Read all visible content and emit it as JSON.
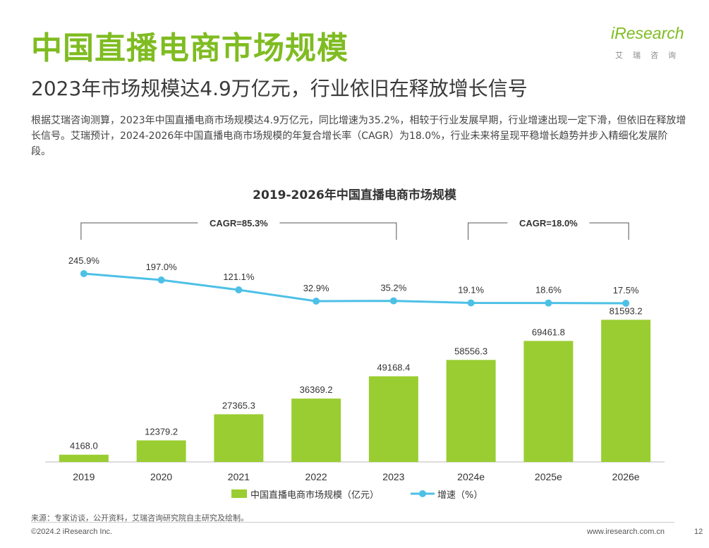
{
  "header": {
    "title": "中国直播电商市场规模",
    "subtitle": "2023年市场规模达4.9万亿元，行业依旧在释放增长信号",
    "body": "根据艾瑞咨询测算，2023年中国直播电商市场规模达4.9万亿元，同比增速为35.2%，相较于行业发展早期，行业增速出现一定下滑，但依旧在释放增长信号。艾瑞预计，2024-2026年中国直播电商市场规模的年复合增长率（CAGR）为18.0%，行业未来将呈现平稳增长趋势并步入精细化发展阶段。"
  },
  "logo": {
    "word": "iResearch",
    "sub": "艾瑞咨询"
  },
  "footer": {
    "source": "来源：专家访谈，公开资料，艾瑞咨询研究院自主研究及绘制。",
    "copyright": "©2024.2 iResearch Inc.",
    "url": "www.iresearch.com.cn",
    "page": "12"
  },
  "colors": {
    "accent": "#7fbc21",
    "bar": "#9acd32",
    "line": "#4dc0e6"
  },
  "chart_data": {
    "type": "bar",
    "title": "2019-2026年中国直播电商市场规模",
    "categories": [
      "2019",
      "2020",
      "2021",
      "2022",
      "2023",
      "2024e",
      "2025e",
      "2026e"
    ],
    "series": [
      {
        "name": "中国直播电商市场规模（亿元）",
        "type": "bar",
        "values": [
          4168.0,
          12379.2,
          27365.3,
          36369.2,
          49168.4,
          58556.3,
          69461.8,
          81593.2
        ],
        "labels": [
          "4168.0",
          "12379.2",
          "27365.3",
          "36369.2",
          "49168.4",
          "58556.3",
          "69461.8",
          "81593.2"
        ]
      },
      {
        "name": "增速（%）",
        "type": "line",
        "values": [
          245.9,
          197.0,
          121.1,
          32.9,
          35.2,
          19.1,
          18.6,
          17.5
        ],
        "labels": [
          "245.9%",
          "197.0%",
          "121.1%",
          "32.9%",
          "35.2%",
          "19.1%",
          "18.6%",
          "17.5%"
        ]
      }
    ],
    "annotations": [
      {
        "text": "CAGR=85.3%",
        "from": "2019",
        "to": "2023"
      },
      {
        "text": "CAGR=18.0%",
        "from": "2024e",
        "to": "2026e"
      }
    ],
    "legend": "bottom",
    "grid": false
  }
}
